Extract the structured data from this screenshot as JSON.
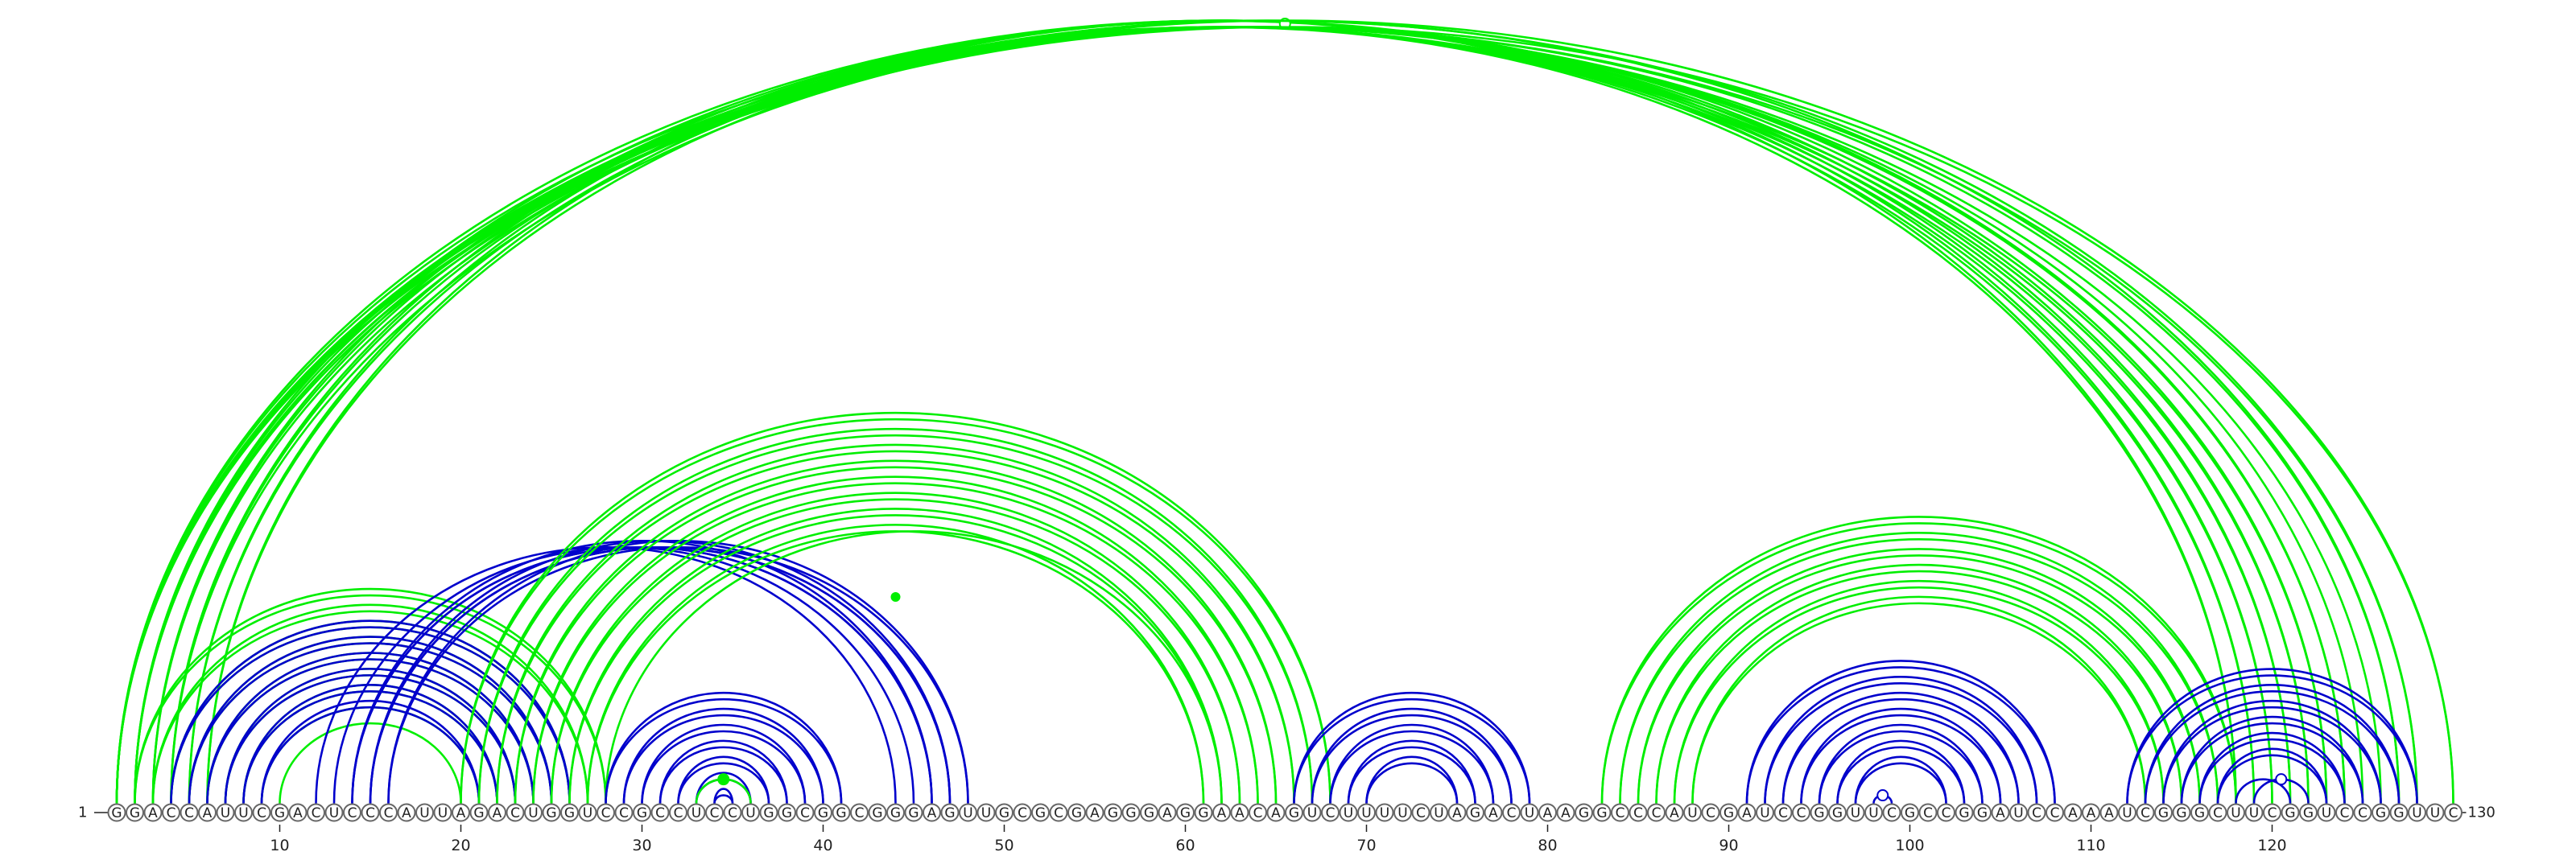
{
  "colors": {
    "green": "#00ee00",
    "blue": "#0000cc"
  },
  "sequence": "GGACCAUUCGACUCCCAUUAGACUGGUCCGCCUCCUGGCGGCGGGAGUUGCGCGAGGGAGGAACAGUCUUUUCUAGACUAAGGCCCAUCGAUCCGGUUCGCCGGAUCCAAAUCGGGCUUCGGUCCGGUUC",
  "labels": {
    "start": "1",
    "end": "130"
  },
  "ticks": [
    10,
    20,
    30,
    40,
    50,
    60,
    70,
    80,
    90,
    100,
    110,
    120
  ],
  "ticks_text": [
    "10",
    "20",
    "30",
    "40",
    "50",
    "60",
    "70",
    "80",
    "90",
    "100",
    "110",
    "120"
  ],
  "arc_groups": [
    {
      "color": "green",
      "start": [
        1,
        2,
        3,
        4,
        5,
        6
      ],
      "end": [
        123,
        122,
        121,
        120,
        119,
        118
      ],
      "double": true
    },
    {
      "color": "green",
      "start": [
        1
      ],
      "end": [
        130
      ],
      "double": true,
      "marker": "open"
    },
    {
      "color": "green",
      "start": [
        1,
        2
      ],
      "end": [
        128,
        127
      ],
      "double": true
    },
    {
      "color": "green",
      "start": [
        1,
        2,
        3,
        4
      ],
      "end": [
        126,
        125,
        124,
        124
      ]
    },
    {
      "color": "green",
      "start": [
        2,
        3,
        4,
        5,
        6,
        7,
        8
      ],
      "end": [
        28,
        27,
        26,
        25,
        24,
        23,
        22
      ],
      "double": true
    },
    {
      "color": "green",
      "start": [
        9,
        10
      ],
      "end": [
        21,
        20
      ]
    },
    {
      "color": "blue",
      "start": [
        4,
        5,
        6,
        7,
        8,
        9
      ],
      "end": [
        26,
        25,
        24,
        23,
        22,
        21
      ],
      "double": true
    },
    {
      "color": "blue",
      "start": [
        12,
        13,
        14,
        15
      ],
      "end": [
        44,
        45,
        46,
        47
      ]
    },
    {
      "color": "blue",
      "start": [
        14,
        15,
        16
      ],
      "end": [
        46,
        47,
        48
      ],
      "double": true
    },
    {
      "color": "green",
      "start": [
        20,
        21,
        22,
        23,
        24,
        25,
        26,
        27
      ],
      "end": [
        68,
        67,
        66,
        65,
        64,
        63,
        62,
        61
      ],
      "double": true
    },
    {
      "color": "green",
      "start": [
        28
      ],
      "end": [
        62
      ]
    },
    {
      "color": "green",
      "start": [
        44
      ],
      "end": [
        44
      ],
      "marker": "filled",
      "apex_only": true
    },
    {
      "color": "blue",
      "start": [
        28,
        29,
        30,
        31,
        32,
        33,
        34
      ],
      "end": [
        41,
        40,
        39,
        38,
        37,
        36,
        35
      ],
      "double": true
    },
    {
      "color": "green",
      "start": [
        33
      ],
      "end": [
        36
      ],
      "marker": "filled"
    },
    {
      "color": "blue",
      "start": [
        66,
        67,
        68,
        69,
        70
      ],
      "end": [
        79,
        78,
        77,
        76,
        75
      ],
      "double": true
    },
    {
      "color": "green",
      "start": [
        83,
        84,
        85,
        86,
        87,
        88
      ],
      "end": [
        118,
        117,
        116,
        115,
        114,
        113
      ],
      "double": true
    },
    {
      "color": "blue",
      "start": [
        91,
        92,
        93,
        94,
        95,
        96,
        97
      ],
      "end": [
        108,
        107,
        106,
        105,
        104,
        103,
        102
      ],
      "double": true
    },
    {
      "color": "blue",
      "start": [
        98
      ],
      "end": [
        99
      ],
      "marker": "open"
    },
    {
      "color": "blue",
      "start": [
        112,
        113,
        114,
        115,
        116,
        117
      ],
      "end": [
        128,
        127,
        126,
        125,
        124,
        123
      ],
      "double": true
    },
    {
      "color": "blue",
      "start": [
        118,
        119
      ],
      "end": [
        121,
        122
      ],
      "marker": "open"
    }
  ]
}
